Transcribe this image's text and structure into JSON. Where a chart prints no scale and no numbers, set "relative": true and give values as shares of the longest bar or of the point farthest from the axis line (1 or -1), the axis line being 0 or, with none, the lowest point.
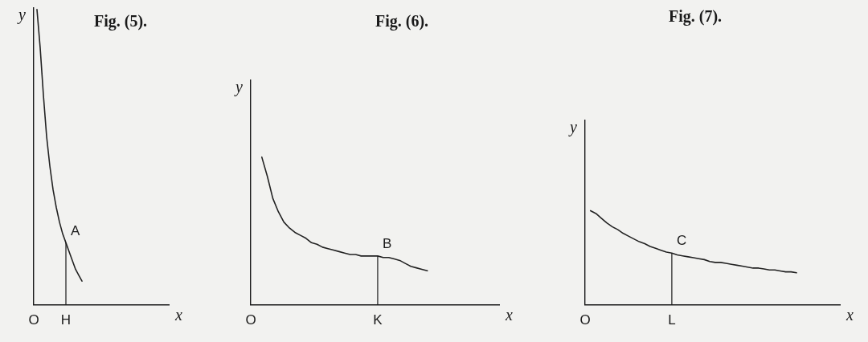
{
  "chart_data": [
    {
      "type": "line",
      "title": "Fig. (5).",
      "xlabel": "x",
      "ylabel": "y",
      "relative": true,
      "marker": "none",
      "line_style": "solid",
      "legend": false,
      "grid": false,
      "categories": [
        "O",
        null,
        null,
        null,
        null,
        null,
        null,
        null,
        null,
        null,
        "H",
        null,
        null,
        null,
        null,
        null,
        null,
        null,
        null,
        null,
        null,
        null,
        null,
        null,
        null,
        null,
        null,
        null,
        null,
        null,
        null,
        null,
        null,
        null,
        null,
        null,
        null,
        null,
        null,
        null,
        null,
        null,
        null
      ],
      "series": [
        {
          "color": "#222222",
          "values": [
            null,
            1.0,
            0.87,
            0.71,
            0.57,
            0.47,
            0.39,
            0.33,
            0.28,
            0.24,
            0.21,
            0.18,
            0.15,
            0.12,
            0.1,
            0.08,
            null,
            null,
            null,
            null,
            null,
            null,
            null,
            null,
            null,
            null,
            null,
            null,
            null,
            null,
            null,
            null,
            null,
            null,
            null,
            null,
            null,
            null,
            null,
            null,
            null,
            null,
            null
          ]
        }
      ],
      "ref_lines": [
        {
          "axis": "x",
          "value": "H",
          "label": null
        }
      ],
      "annotations": [
        {
          "text": "A",
          "x": "H",
          "y": 0.21
        }
      ]
    },
    {
      "type": "line",
      "title": "Fig. (6).",
      "xlabel": "x",
      "ylabel": "y",
      "relative": true,
      "marker": "none",
      "line_style": "solid",
      "legend": false,
      "grid": false,
      "categories": [
        "O",
        null,
        null,
        null,
        null,
        null,
        null,
        null,
        null,
        null,
        null,
        null,
        null,
        null,
        null,
        null,
        null,
        null,
        null,
        null,
        null,
        null,
        null,
        "K",
        null,
        null,
        null,
        null,
        null,
        null,
        null,
        null,
        null,
        null,
        null,
        null,
        null,
        null,
        null,
        null,
        null,
        null,
        null,
        null,
        null,
        null
      ],
      "series": [
        {
          "color": "#222222",
          "values": [
            null,
            null,
            1.0,
            0.87,
            0.72,
            0.63,
            0.56,
            0.52,
            0.49,
            0.47,
            0.45,
            0.42,
            0.41,
            0.39,
            0.38,
            0.37,
            0.36,
            0.35,
            0.34,
            0.34,
            0.33,
            0.33,
            0.33,
            0.33,
            0.32,
            0.32,
            0.31,
            0.3,
            0.28,
            0.26,
            0.25,
            0.24,
            0.23,
            null,
            null,
            null,
            null,
            null,
            null,
            null,
            null,
            null,
            null,
            null,
            null,
            null
          ]
        }
      ],
      "ref_lines": [
        {
          "axis": "x",
          "value": "K",
          "label": null
        }
      ],
      "annotations": [
        {
          "text": "B",
          "x": "K",
          "y": 0.33
        }
      ]
    },
    {
      "type": "line",
      "title": "Fig. (7).",
      "xlabel": "x",
      "ylabel": "y",
      "relative": true,
      "marker": "none",
      "line_style": "solid",
      "legend": false,
      "grid": false,
      "categories": [
        "O",
        null,
        null,
        null,
        null,
        null,
        null,
        null,
        null,
        null,
        null,
        null,
        null,
        null,
        null,
        null,
        "L",
        null,
        null,
        null,
        null,
        null,
        null,
        null,
        null,
        null,
        null,
        null,
        null,
        null,
        null,
        null,
        null,
        null,
        null,
        null,
        null,
        null,
        null,
        null,
        null,
        null,
        null,
        null,
        null,
        null,
        null,
        null
      ],
      "series": [
        {
          "color": "#222222",
          "values": [
            null,
            1.0,
            0.97,
            0.92,
            0.87,
            0.83,
            0.8,
            0.76,
            0.73,
            0.7,
            0.67,
            0.65,
            0.62,
            0.6,
            0.58,
            0.56,
            0.55,
            0.53,
            0.52,
            0.51,
            0.5,
            0.49,
            0.48,
            0.46,
            0.45,
            0.45,
            0.44,
            0.43,
            0.42,
            0.41,
            0.4,
            0.39,
            0.39,
            0.38,
            0.37,
            0.37,
            0.36,
            0.35,
            0.35,
            0.34,
            null,
            null,
            null,
            null,
            null,
            null,
            null,
            null
          ]
        }
      ],
      "ref_lines": [
        {
          "axis": "x",
          "value": "L",
          "label": null
        }
      ],
      "annotations": [
        {
          "text": "C",
          "x": "L",
          "y": 0.55
        }
      ]
    }
  ]
}
